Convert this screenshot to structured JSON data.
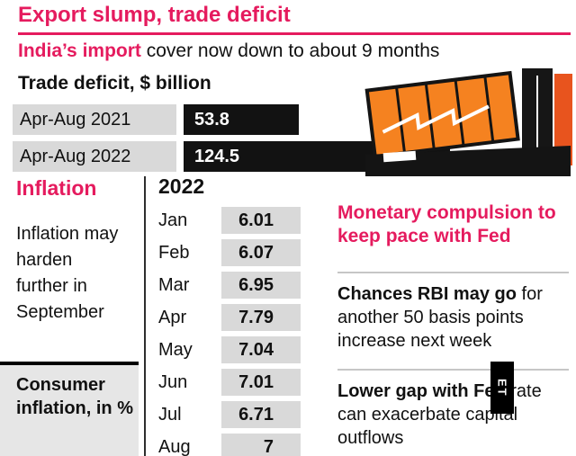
{
  "colors": {
    "accent": "#e51b5e",
    "gray": "#d9d9d9",
    "orange": "#f58220",
    "bar": "#121212"
  },
  "header": {
    "title": "Export slump, trade deficit",
    "subtitle_bold": "India’s import",
    "subtitle_rest": " cover now down to about 9 months"
  },
  "trade_deficit": {
    "label": "Trade deficit, $ billion",
    "rows": [
      {
        "period": "Apr-Aug 2021",
        "value": "53.8"
      },
      {
        "period": "Apr-Aug 2022",
        "value": "124.5"
      }
    ]
  },
  "inflation": {
    "heading": "Inflation",
    "note": "Inflation may harden further in September",
    "box_label": "Consumer inflation, in %",
    "table": {
      "year": "2022",
      "rows": [
        {
          "month": "Jan",
          "value": "6.01"
        },
        {
          "month": "Feb",
          "value": "6.07"
        },
        {
          "month": "Mar",
          "value": "6.95"
        },
        {
          "month": "Apr",
          "value": "7.79"
        },
        {
          "month": "May",
          "value": "7.04"
        },
        {
          "month": "Jun",
          "value": "7.01"
        },
        {
          "month": "Jul",
          "value": "6.71"
        },
        {
          "month": "Aug",
          "value": "7"
        }
      ]
    }
  },
  "right": {
    "heading": "Monetary compulsion to keep pace with Fed",
    "items": [
      {
        "bold": "Chances RBI may go",
        "rest": " for another 50 basis points increase next week"
      },
      {
        "bold": "Lower gap with Fed",
        "rest": " rate can exacerbate capital outflows"
      }
    ],
    "watermark": "ET"
  },
  "chart_data": [
    {
      "type": "bar",
      "title": "Trade deficit, $ billion",
      "orientation": "horizontal",
      "categories": [
        "Apr-Aug 2021",
        "Apr-Aug 2022"
      ],
      "values": [
        53.8,
        124.5
      ],
      "xlabel": "",
      "ylabel": "$ billion",
      "xlim": [
        0,
        130
      ],
      "grid": false,
      "legend": "none"
    },
    {
      "type": "table",
      "title": "Consumer inflation, in %",
      "subtitle": "2022",
      "categories": [
        "Jan",
        "Feb",
        "Mar",
        "Apr",
        "May",
        "Jun",
        "Jul",
        "Aug"
      ],
      "values": [
        6.01,
        6.07,
        6.95,
        7.79,
        7.04,
        7.01,
        6.71,
        7
      ]
    }
  ]
}
